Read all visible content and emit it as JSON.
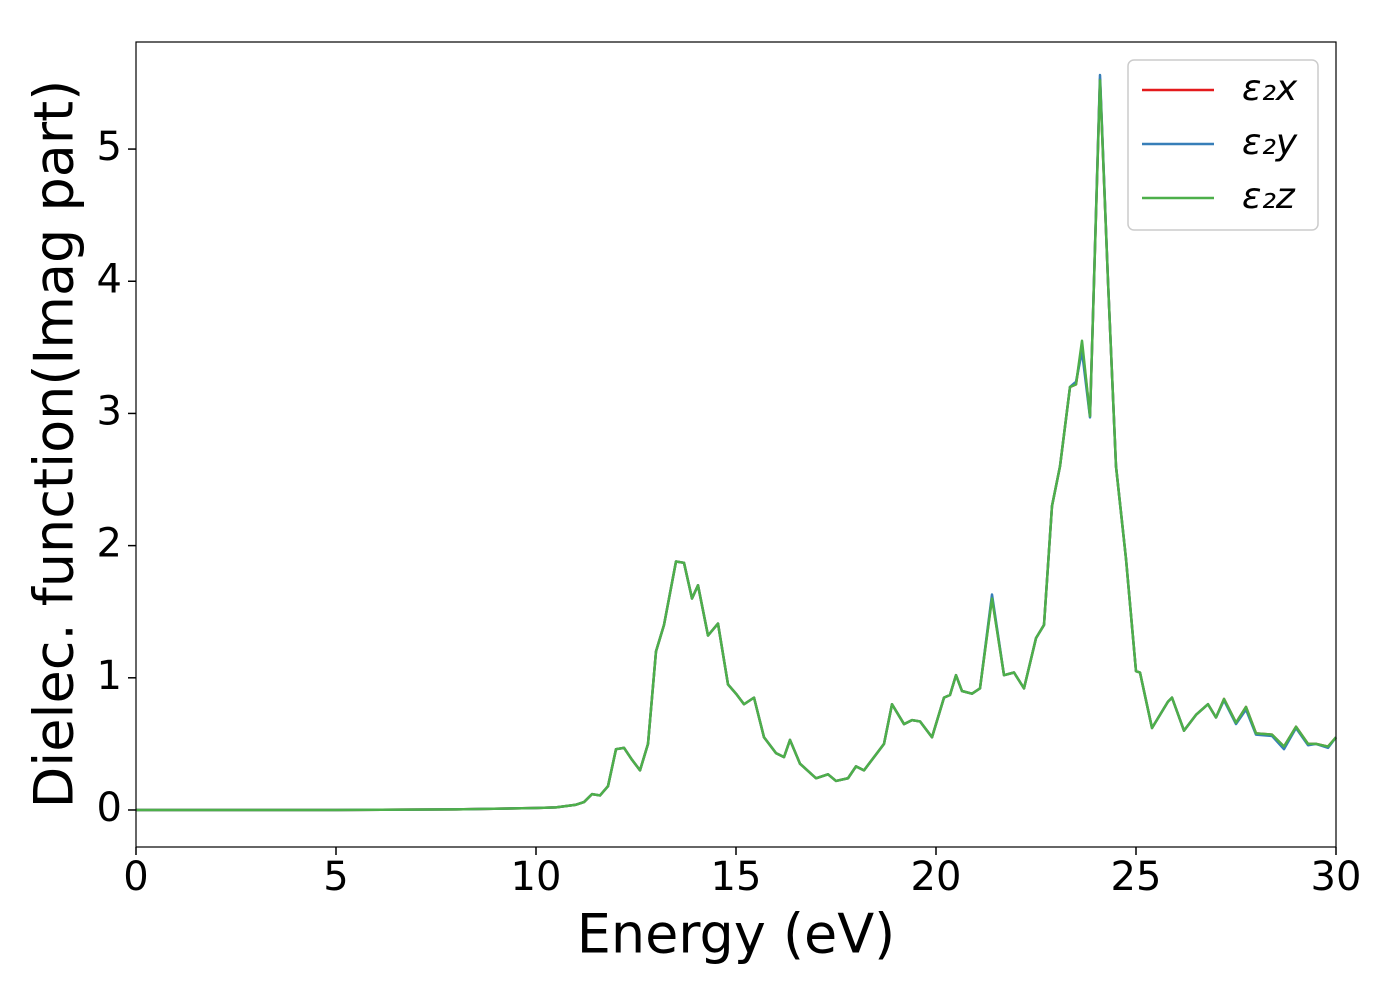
{
  "chart_data": {
    "type": "line",
    "x_label": "Energy (eV)",
    "y_label": "Dielec. function(Imag part)",
    "x": [
      0,
      5,
      8,
      10,
      10.5,
      11,
      11.2,
      11.4,
      11.6,
      11.8,
      12.0,
      12.2,
      12.4,
      12.6,
      12.8,
      13.0,
      13.2,
      13.5,
      13.7,
      13.9,
      14.05,
      14.3,
      14.55,
      14.8,
      15.0,
      15.2,
      15.45,
      15.7,
      16.0,
      16.2,
      16.35,
      16.6,
      17.0,
      17.3,
      17.5,
      17.8,
      18.0,
      18.2,
      18.5,
      18.7,
      18.9,
      19.2,
      19.4,
      19.6,
      19.9,
      20.2,
      20.35,
      20.5,
      20.65,
      20.9,
      21.1,
      21.4,
      21.7,
      21.95,
      22.2,
      22.5,
      22.7,
      22.9,
      23.1,
      23.35,
      23.5,
      23.65,
      23.85,
      24.1,
      24.3,
      24.5,
      24.75,
      25.0,
      25.1,
      25.4,
      25.8,
      25.9,
      26.2,
      26.5,
      26.8,
      27.0,
      27.2,
      27.5,
      27.75,
      28.0,
      28.4,
      28.7,
      29.0,
      29.3,
      29.5,
      29.8,
      30.0
    ],
    "series": [
      {
        "name": "ε₂x",
        "color": "#e41a1c",
        "values": [
          0,
          0,
          0.005,
          0.015,
          0.02,
          0.04,
          0.06,
          0.12,
          0.11,
          0.18,
          0.46,
          0.47,
          0.38,
          0.3,
          0.5,
          1.2,
          1.4,
          1.88,
          1.87,
          1.6,
          1.7,
          1.32,
          1.41,
          0.95,
          0.88,
          0.8,
          0.85,
          0.55,
          0.43,
          0.4,
          0.53,
          0.35,
          0.24,
          0.27,
          0.22,
          0.24,
          0.33,
          0.3,
          0.42,
          0.5,
          0.8,
          0.65,
          0.68,
          0.67,
          0.55,
          0.85,
          0.87,
          1.02,
          0.9,
          0.88,
          0.92,
          1.61,
          1.02,
          1.04,
          0.92,
          1.3,
          1.4,
          2.3,
          2.6,
          3.2,
          3.22,
          3.52,
          2.98,
          5.53,
          4.0,
          2.6,
          1.9,
          1.05,
          1.04,
          0.62,
          0.82,
          0.85,
          0.6,
          0.72,
          0.8,
          0.7,
          0.84,
          0.66,
          0.78,
          0.58,
          0.57,
          0.48,
          0.63,
          0.5,
          0.5,
          0.48,
          0.55
        ]
      },
      {
        "name": "ε₂y",
        "color": "#377eb8",
        "values": [
          0,
          0,
          0.005,
          0.015,
          0.02,
          0.04,
          0.06,
          0.12,
          0.11,
          0.18,
          0.46,
          0.47,
          0.38,
          0.3,
          0.5,
          1.2,
          1.4,
          1.88,
          1.87,
          1.6,
          1.7,
          1.32,
          1.41,
          0.95,
          0.88,
          0.8,
          0.85,
          0.55,
          0.43,
          0.4,
          0.53,
          0.35,
          0.24,
          0.27,
          0.22,
          0.24,
          0.33,
          0.3,
          0.42,
          0.5,
          0.8,
          0.65,
          0.68,
          0.67,
          0.55,
          0.85,
          0.87,
          1.02,
          0.9,
          0.88,
          0.92,
          1.63,
          1.02,
          1.04,
          0.92,
          1.3,
          1.4,
          2.3,
          2.6,
          3.2,
          3.24,
          3.47,
          2.97,
          5.56,
          4.0,
          2.6,
          1.9,
          1.05,
          1.04,
          0.62,
          0.82,
          0.85,
          0.6,
          0.72,
          0.8,
          0.7,
          0.83,
          0.65,
          0.76,
          0.57,
          0.56,
          0.46,
          0.62,
          0.49,
          0.5,
          0.47,
          0.55
        ]
      },
      {
        "name": "ε₂z",
        "color": "#4daf4a",
        "values": [
          0,
          0,
          0.005,
          0.015,
          0.02,
          0.04,
          0.06,
          0.12,
          0.11,
          0.18,
          0.46,
          0.47,
          0.38,
          0.3,
          0.5,
          1.2,
          1.4,
          1.88,
          1.87,
          1.6,
          1.7,
          1.32,
          1.41,
          0.95,
          0.88,
          0.8,
          0.85,
          0.55,
          0.43,
          0.4,
          0.53,
          0.35,
          0.24,
          0.27,
          0.22,
          0.24,
          0.33,
          0.3,
          0.42,
          0.5,
          0.8,
          0.65,
          0.68,
          0.67,
          0.55,
          0.85,
          0.87,
          1.02,
          0.9,
          0.88,
          0.92,
          1.6,
          1.02,
          1.04,
          0.92,
          1.3,
          1.4,
          2.3,
          2.6,
          3.2,
          3.22,
          3.55,
          2.98,
          5.52,
          4.0,
          2.6,
          1.9,
          1.05,
          1.04,
          0.62,
          0.82,
          0.85,
          0.6,
          0.72,
          0.8,
          0.7,
          0.84,
          0.66,
          0.78,
          0.58,
          0.57,
          0.48,
          0.63,
          0.5,
          0.5,
          0.48,
          0.55
        ]
      }
    ],
    "xlim": [
      0,
      30
    ],
    "xticks": [
      0,
      5,
      10,
      15,
      20,
      25,
      30
    ],
    "ylim": [
      -0.28,
      5.81
    ],
    "yticks": [
      0,
      1,
      2,
      3,
      4,
      5
    ],
    "grid": false,
    "legend": "upper right"
  }
}
